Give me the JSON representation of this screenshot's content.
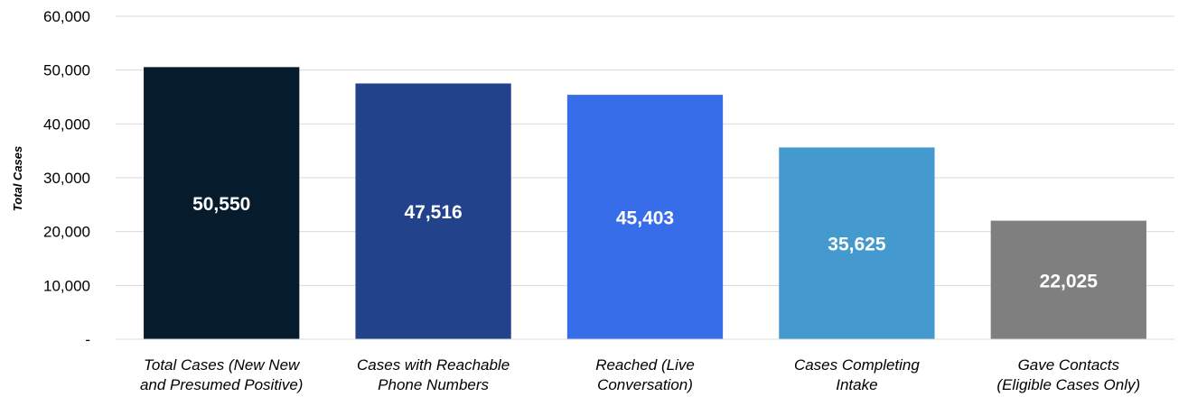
{
  "chart_data": {
    "type": "bar",
    "title": "",
    "xlabel": "",
    "ylabel": "Total Cases",
    "categories": [
      [
        "Total Cases (New New",
        "and Presumed Positive)"
      ],
      [
        "Cases with Reachable",
        "Phone Numbers"
      ],
      [
        "Reached (Live",
        "Conversation)"
      ],
      [
        "Cases Completing",
        "Intake"
      ],
      [
        "Gave Contacts",
        "(Eligible Cases Only)"
      ]
    ],
    "values": [
      50550,
      47516,
      45403,
      35625,
      22025
    ],
    "data_labels": [
      "50,550",
      "47,516",
      "45,403",
      "35,625",
      "22,025"
    ],
    "colors": [
      "#061c2c",
      "#23428c",
      "#386de9",
      "#4499cf",
      "#7f7f7f"
    ],
    "ylim": [
      0,
      60000
    ],
    "yticks": [
      0,
      10000,
      20000,
      30000,
      40000,
      50000,
      60000
    ],
    "ytick_labels": [
      "-",
      "10,000",
      "20,000",
      "30,000",
      "40,000",
      "50,000",
      "60,000"
    ],
    "grid": true,
    "legend": "none"
  }
}
